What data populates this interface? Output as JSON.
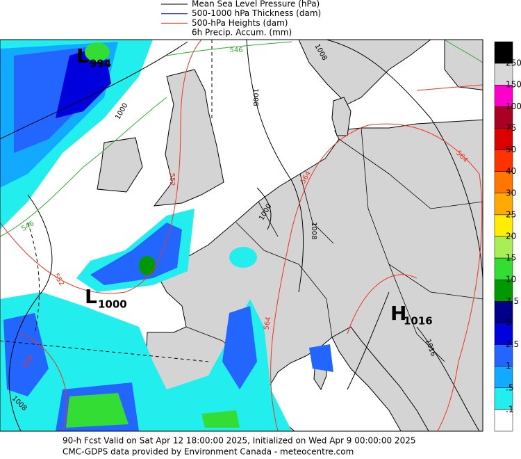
{
  "legend": {
    "items": [
      {
        "label": "Mean Sea Level Pressure (hPa)",
        "color": "#000000"
      },
      {
        "label": "500-1000 hPa Thickness (dam)",
        "color": "#0000cc"
      },
      {
        "label": "500-hPa Heights (dam)",
        "color": "#ee3322"
      },
      {
        "label": "6h Precip. Accum. (mm)"
      }
    ]
  },
  "colorbar": {
    "labels": [
      "250",
      "150",
      "100",
      "75",
      "50",
      "40",
      "30",
      "25",
      "20",
      "15",
      "10",
      "7.5",
      "5",
      "2.5",
      "1",
      ".5",
      ".1"
    ],
    "colors": [
      "#000000",
      "#d8d8d8",
      "#ff00cc",
      "#aa0022",
      "#dd0000",
      "#ff3300",
      "#ff7700",
      "#ffaa00",
      "#ffee00",
      "#aaee55",
      "#33dd33",
      "#009900",
      "#000088",
      "#0000dd",
      "#2266ff",
      "#11aaff",
      "#22eeee",
      "#ffffff"
    ]
  },
  "systems": [
    {
      "letter": "L",
      "value": "994"
    },
    {
      "letter": "L",
      "value": "1000"
    },
    {
      "letter": "H",
      "value": "1016"
    }
  ],
  "contour_labels": {
    "pressure": [
      "1000",
      "1008",
      "1008",
      "1008",
      "1016",
      "1008",
      "1000"
    ],
    "heights": [
      "552",
      "552",
      "564",
      "564",
      "564",
      "558"
    ],
    "thickness": [
      "546",
      "546"
    ]
  },
  "footer": [
    "90-h Fcst Valid on Sat Apr 12 18:00:00 2025, Initialized on Wed Apr  9 00:00:00 2025",
    "CMC-GDPS data provided by Environment Canada - meteocentre.com"
  ]
}
